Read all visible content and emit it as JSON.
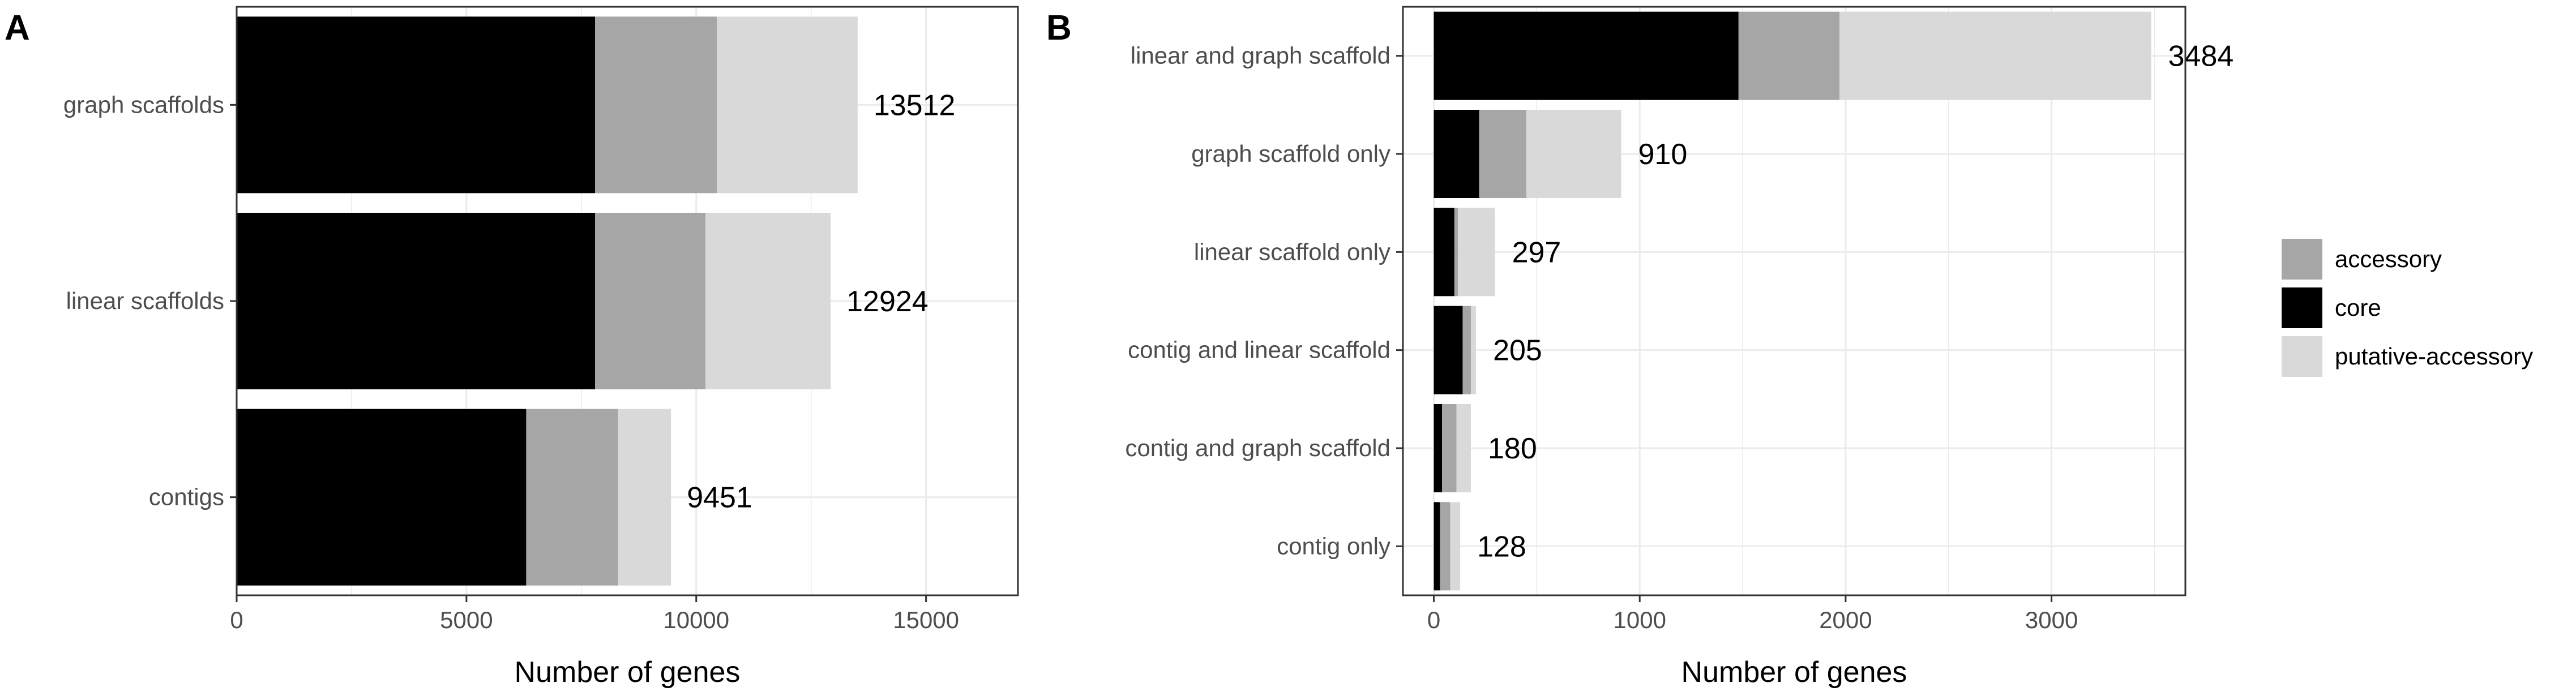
{
  "chart_data": [
    {
      "panel_letter": "A",
      "type": "bar",
      "orientation": "horizontal",
      "stacked": true,
      "categories": [
        "contigs",
        "linear scaffolds",
        "graph scaffolds"
      ],
      "series": [
        {
          "name": "core",
          "values": [
            6300,
            7800,
            7800
          ],
          "color": "#000000"
        },
        {
          "name": "accessory",
          "values": [
            2000,
            2400,
            2650
          ],
          "color": "#a6a6a6"
        },
        {
          "name": "putative-accessory",
          "values": [
            1151,
            2724,
            3062
          ],
          "color": "#d9d9d9"
        }
      ],
      "totals": [
        9451,
        12924,
        13512
      ],
      "total_labels": [
        "9451",
        "12924",
        "13512"
      ],
      "xlabel": "Number of genes",
      "xlim": [
        0,
        17000
      ],
      "xticks": [
        0,
        5000,
        10000,
        15000
      ],
      "xtick_labels": [
        "0",
        "5000",
        "10000",
        "15000"
      ],
      "grid": true
    },
    {
      "panel_letter": "B",
      "type": "bar",
      "orientation": "horizontal",
      "stacked": true,
      "categories": [
        "contig only",
        "contig and graph scaffold",
        "contig and linear scaffold",
        "linear scaffold only",
        "graph scaffold only",
        "linear and graph scaffold"
      ],
      "series": [
        {
          "name": "core",
          "values": [
            30,
            40,
            140,
            100,
            220,
            1480
          ],
          "color": "#000000"
        },
        {
          "name": "accessory",
          "values": [
            50,
            70,
            40,
            17,
            230,
            490
          ],
          "color": "#a6a6a6"
        },
        {
          "name": "putative-accessory",
          "values": [
            48,
            70,
            25,
            180,
            460,
            1514
          ],
          "color": "#d9d9d9"
        }
      ],
      "totals": [
        128,
        180,
        205,
        297,
        910,
        3484
      ],
      "total_labels": [
        "128",
        "180",
        "205",
        "297",
        "910",
        "3484"
      ],
      "xlabel": "Number of genes",
      "xlim": [
        -150,
        3650
      ],
      "xticks": [
        0,
        1000,
        2000,
        3000
      ],
      "xtick_labels": [
        "0",
        "1000",
        "2000",
        "3000"
      ],
      "grid": true
    }
  ],
  "legend": {
    "position": "right",
    "items": [
      {
        "name": "accessory",
        "color": "#a6a6a6"
      },
      {
        "name": "core",
        "color": "#000000"
      },
      {
        "name": "putative-accessory",
        "color": "#d9d9d9"
      }
    ]
  }
}
